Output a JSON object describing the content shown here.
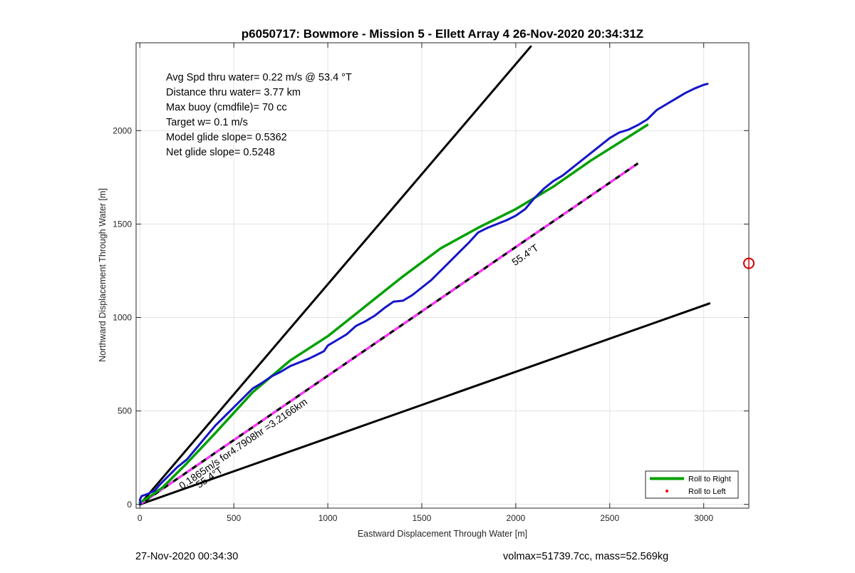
{
  "chart_data": {
    "type": "line",
    "title": "p6050717: Bowmore - Mission 5 - Ellett Array 4 26-Nov-2020 20:34:31Z",
    "xlabel": "Eastward Displacement Through Water [m]",
    "ylabel": "Northward Displacement Through Water [m]",
    "xlim": [
      -20,
      3240
    ],
    "ylim": [
      -20,
      2470
    ],
    "xticks": [
      0,
      500,
      1000,
      1500,
      2000,
      2500,
      3000
    ],
    "yticks": [
      0,
      500,
      1000,
      1500,
      2000
    ],
    "grid": true,
    "legend_position": "bottom-right",
    "legend": [
      {
        "label": "Roll to Right",
        "color": "#00a000",
        "style": "line"
      },
      {
        "label": "Roll to Left",
        "color": "#ff0000",
        "style": "dot"
      }
    ],
    "stats_lines": [
      "Avg Spd thru water=  0.22 m/s @  53.4 °T",
      "Distance thru water=  3.77 km",
      "Max buoy (cmdfile)= 70 cc",
      "Target w= 0.1 m/s",
      "Model glide slope= 0.5362",
      "Net glide slope= 0.5248"
    ],
    "annotations": [
      {
        "text": "55.4°T",
        "at": [
          2060,
          1320
        ]
      },
      {
        "text": "0.1865m/s for4.7908hr =3.2166km",
        "at": [
          560,
          310
        ]
      },
      {
        "text": "55.4°T",
        "at": [
          380,
          130
        ]
      }
    ],
    "series": [
      {
        "color": "#000000",
        "points": [
          [
            0,
            0
          ],
          [
            2080,
            2450
          ]
        ]
      },
      {
        "color": "#000000",
        "points": [
          [
            0,
            0
          ],
          [
            3030,
            1075
          ]
        ]
      },
      {
        "color": "#000000",
        "style": "black-magenta-dashed",
        "points": [
          [
            0,
            0
          ],
          [
            2650,
            1825
          ]
        ]
      },
      {
        "name": "Roll to Right",
        "color": "#00a000",
        "points": [
          [
            0,
            10
          ],
          [
            50,
            40
          ],
          [
            120,
            90
          ],
          [
            250,
            220
          ],
          [
            400,
            380
          ],
          [
            600,
            600
          ],
          [
            800,
            770
          ],
          [
            1000,
            900
          ],
          [
            1200,
            1060
          ],
          [
            1400,
            1220
          ],
          [
            1600,
            1370
          ],
          [
            1800,
            1480
          ],
          [
            2000,
            1580
          ],
          [
            2200,
            1700
          ],
          [
            2400,
            1840
          ],
          [
            2700,
            2030
          ]
        ]
      },
      {
        "color": "#1515c8",
        "points": [
          [
            5,
            0
          ],
          [
            0,
            25
          ],
          [
            10,
            45
          ],
          [
            40,
            55
          ],
          [
            80,
            75
          ],
          [
            110,
            110
          ],
          [
            150,
            150
          ],
          [
            200,
            200
          ],
          [
            250,
            240
          ],
          [
            300,
            300
          ],
          [
            350,
            360
          ],
          [
            400,
            420
          ],
          [
            450,
            470
          ],
          [
            500,
            520
          ],
          [
            550,
            570
          ],
          [
            600,
            620
          ],
          [
            650,
            650
          ],
          [
            700,
            685
          ],
          [
            750,
            710
          ],
          [
            800,
            740
          ],
          [
            850,
            760
          ],
          [
            900,
            780
          ],
          [
            940,
            800
          ],
          [
            980,
            820
          ],
          [
            1000,
            850
          ],
          [
            1050,
            880
          ],
          [
            1100,
            910
          ],
          [
            1150,
            955
          ],
          [
            1200,
            980
          ],
          [
            1250,
            1010
          ],
          [
            1300,
            1050
          ],
          [
            1350,
            1085
          ],
          [
            1400,
            1090
          ],
          [
            1450,
            1120
          ],
          [
            1500,
            1160
          ],
          [
            1550,
            1200
          ],
          [
            1600,
            1250
          ],
          [
            1650,
            1300
          ],
          [
            1700,
            1350
          ],
          [
            1750,
            1400
          ],
          [
            1800,
            1455
          ],
          [
            1850,
            1480
          ],
          [
            1900,
            1500
          ],
          [
            1950,
            1520
          ],
          [
            2000,
            1545
          ],
          [
            2050,
            1580
          ],
          [
            2100,
            1640
          ],
          [
            2150,
            1690
          ],
          [
            2200,
            1730
          ],
          [
            2250,
            1760
          ],
          [
            2300,
            1800
          ],
          [
            2350,
            1840
          ],
          [
            2400,
            1880
          ],
          [
            2450,
            1920
          ],
          [
            2500,
            1960
          ],
          [
            2550,
            1990
          ],
          [
            2600,
            2005
          ],
          [
            2650,
            2030
          ],
          [
            2700,
            2060
          ],
          [
            2750,
            2110
          ],
          [
            2800,
            2140
          ],
          [
            2850,
            2170
          ],
          [
            2900,
            2200
          ],
          [
            2950,
            2225
          ],
          [
            3000,
            2245
          ],
          [
            3020,
            2250
          ]
        ]
      }
    ],
    "marker": {
      "at": [
        3240,
        1290
      ],
      "color": "#d00000"
    }
  },
  "footer": {
    "timestamp": "27-Nov-2020 00:34:30",
    "volmax_mass": "volmax=51739.7cc, mass=52.569kg"
  }
}
